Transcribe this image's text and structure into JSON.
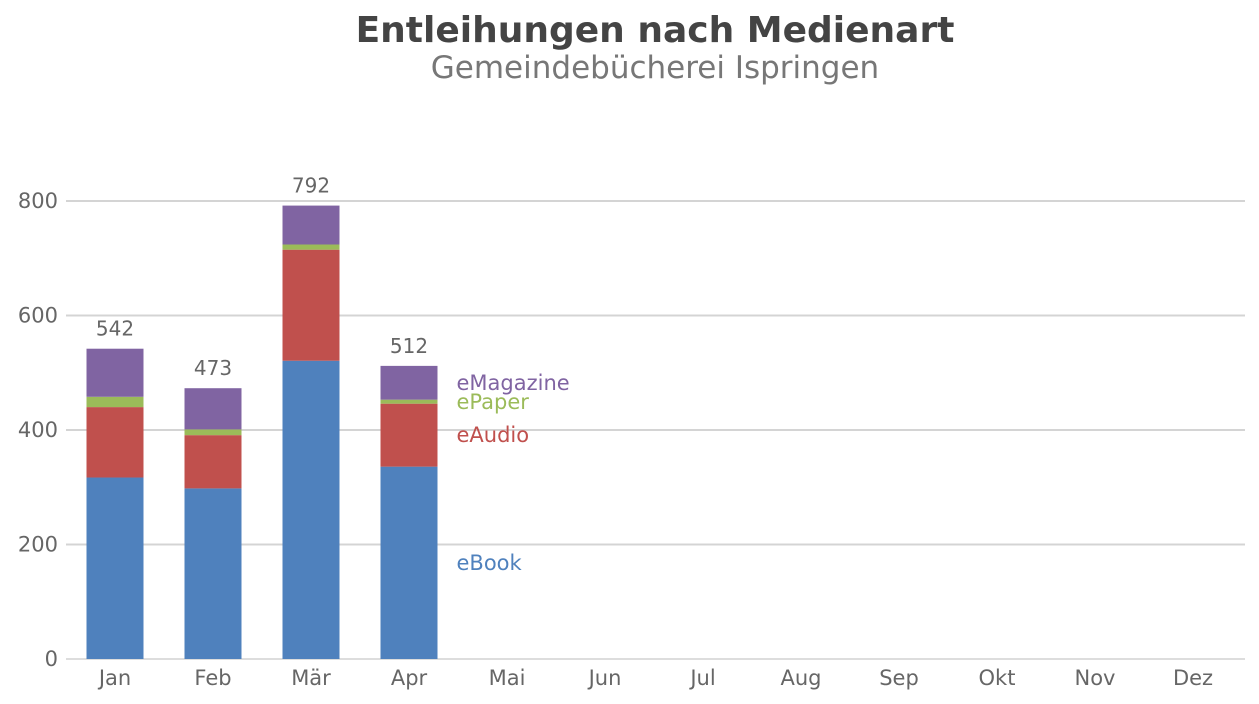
{
  "chart_data": {
    "type": "bar",
    "stacked": true,
    "title": "Entleihungen nach Medienart",
    "subtitle": "Gemeindebücherei Ispringen",
    "categories": [
      "Jan",
      "Feb",
      "Mär",
      "Apr",
      "Mai",
      "Jun",
      "Jul",
      "Aug",
      "Sep",
      "Okt",
      "Nov",
      "Dez"
    ],
    "series": [
      {
        "name": "eBook",
        "color": "#4f81bd",
        "values": [
          317,
          298,
          521,
          336,
          null,
          null,
          null,
          null,
          null,
          null,
          null,
          null
        ]
      },
      {
        "name": "eAudio",
        "color": "#c0504d",
        "values": [
          123,
          93,
          194,
          110,
          null,
          null,
          null,
          null,
          null,
          null,
          null,
          null
        ]
      },
      {
        "name": "ePaper",
        "color": "#9bbb59",
        "values": [
          18,
          10,
          9,
          7,
          null,
          null,
          null,
          null,
          null,
          null,
          null,
          null
        ]
      },
      {
        "name": "eMagazine",
        "color": "#8064a2",
        "values": [
          84,
          72,
          68,
          59,
          null,
          null,
          null,
          null,
          null,
          null,
          null,
          null
        ]
      }
    ],
    "totals": [
      542,
      473,
      792,
      512,
      null,
      null,
      null,
      null,
      null,
      null,
      null,
      null
    ],
    "yticks": [
      0,
      200,
      400,
      600,
      800
    ],
    "ylim": [
      0,
      1000
    ],
    "grid": true,
    "legend": "inline-right-of-last-bar"
  }
}
